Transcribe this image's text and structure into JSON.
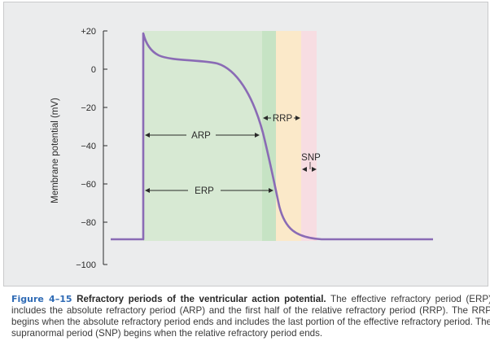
{
  "diagram": {
    "y_axis_label": "Membrane potential (mV)",
    "y_ticks": [
      "+20",
      "0",
      "−20",
      "−40",
      "−60",
      "−80",
      "−100"
    ],
    "regions": [
      {
        "name": "ARP region",
        "color": "#d7e9d3"
      },
      {
        "name": "RRP early region",
        "color": "#c6e3c4"
      },
      {
        "name": "RRP late region",
        "color": "#fbe9c9"
      },
      {
        "name": "SNP region",
        "color": "#f7dde2"
      }
    ],
    "curve_color": "#8a6bb5",
    "labels": {
      "arp": "ARP",
      "erp": "ERP",
      "rrp": "RRP",
      "snp": "SNP"
    }
  },
  "caption": {
    "figure_label": "Figure 4–15",
    "title": "Refractory periods of the ventricular action potential.",
    "text": "The effective refractory period (ERP) includes the absolute refractory period (ARP) and the first half of the relative refractory period (RRP). The RRP begins when the absolute refractory period ends and includes the last portion of the effective refractory period. The supranormal period (SNP) begins when the relative refractory period ends."
  }
}
